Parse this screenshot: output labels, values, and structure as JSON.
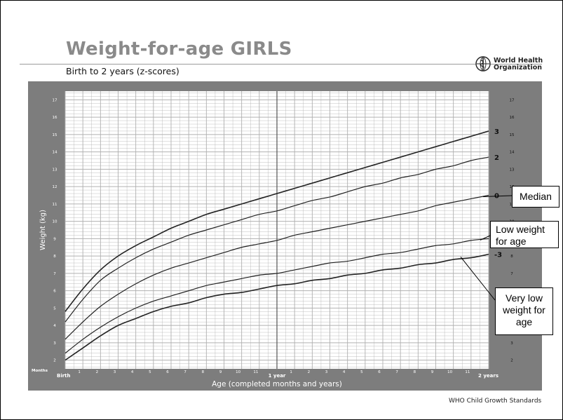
{
  "header": {
    "title": "Weight-for-age GIRLS",
    "subtitle": "Birth to 2 years (z-scores)",
    "organization_line1": "World Health",
    "organization_line2": "Organization",
    "logo_icon": "who-emblem-icon"
  },
  "footer": {
    "text": "WHO Child Growth Standards"
  },
  "callouts": {
    "median": "Median",
    "low_weight": [
      "Low weight",
      "for age"
    ],
    "very_low_weight": [
      "Very low",
      "weight for",
      "age"
    ]
  },
  "colors": {
    "plot_background": "#7d7d7d",
    "grid_area": "#ffffff",
    "grid_lines": "#b0b0b0",
    "curves": "#222222",
    "title": "#8a8a8a"
  },
  "chart_data": {
    "type": "line",
    "ylabel": "Weight (kg)",
    "xlabel": "Age (completed months and years)",
    "corner_label": "Months",
    "xlim": [
      0,
      24
    ],
    "ylim": [
      1.5,
      17.5
    ],
    "y_ticks": [
      2,
      3,
      4,
      5,
      6,
      7,
      8,
      9,
      10,
      11,
      12,
      13,
      14,
      15,
      16,
      17
    ],
    "x_ticks": [
      {
        "month": 0,
        "label": "Birth"
      },
      {
        "month": 1,
        "label": "1"
      },
      {
        "month": 2,
        "label": "2"
      },
      {
        "month": 3,
        "label": "3"
      },
      {
        "month": 4,
        "label": "4"
      },
      {
        "month": 5,
        "label": "5"
      },
      {
        "month": 6,
        "label": "6"
      },
      {
        "month": 7,
        "label": "7"
      },
      {
        "month": 8,
        "label": "8"
      },
      {
        "month": 9,
        "label": "9"
      },
      {
        "month": 10,
        "label": "10"
      },
      {
        "month": 11,
        "label": "11"
      },
      {
        "month": 12,
        "label": "1 year"
      },
      {
        "month": 13,
        "label": "1"
      },
      {
        "month": 14,
        "label": "2"
      },
      {
        "month": 15,
        "label": "3"
      },
      {
        "month": 16,
        "label": "4"
      },
      {
        "month": 17,
        "label": "5"
      },
      {
        "month": 18,
        "label": "6"
      },
      {
        "month": 19,
        "label": "7"
      },
      {
        "month": 20,
        "label": "8"
      },
      {
        "month": 21,
        "label": "9"
      },
      {
        "month": 22,
        "label": "10"
      },
      {
        "month": 23,
        "label": "11"
      },
      {
        "month": 24,
        "label": "2 years"
      }
    ],
    "x": [
      0,
      1,
      2,
      3,
      4,
      5,
      6,
      7,
      8,
      9,
      10,
      11,
      12,
      13,
      14,
      15,
      16,
      17,
      18,
      19,
      20,
      21,
      22,
      23,
      24
    ],
    "series": [
      {
        "name": "3",
        "values": [
          4.8,
          6.1,
          7.2,
          8.0,
          8.6,
          9.1,
          9.6,
          10.0,
          10.4,
          10.7,
          11.0,
          11.3,
          11.6,
          11.9,
          12.2,
          12.5,
          12.8,
          13.1,
          13.4,
          13.7,
          14.0,
          14.3,
          14.6,
          14.9,
          15.2
        ]
      },
      {
        "name": "2",
        "values": [
          4.2,
          5.5,
          6.6,
          7.3,
          7.9,
          8.4,
          8.8,
          9.2,
          9.5,
          9.8,
          10.1,
          10.4,
          10.6,
          10.9,
          11.2,
          11.4,
          11.7,
          12.0,
          12.2,
          12.5,
          12.7,
          13.0,
          13.2,
          13.5,
          13.7
        ]
      },
      {
        "name": "0",
        "values": [
          3.2,
          4.2,
          5.1,
          5.8,
          6.4,
          6.9,
          7.3,
          7.6,
          7.9,
          8.2,
          8.5,
          8.7,
          8.9,
          9.2,
          9.4,
          9.6,
          9.8,
          10.0,
          10.2,
          10.4,
          10.6,
          10.9,
          11.1,
          11.3,
          11.5
        ]
      },
      {
        "name": "-2",
        "values": [
          2.4,
          3.2,
          3.9,
          4.5,
          5.0,
          5.4,
          5.7,
          6.0,
          6.3,
          6.5,
          6.7,
          6.9,
          7.0,
          7.2,
          7.4,
          7.6,
          7.7,
          7.9,
          8.1,
          8.2,
          8.4,
          8.6,
          8.7,
          8.9,
          9.0
        ]
      },
      {
        "name": "-3",
        "values": [
          2.0,
          2.7,
          3.4,
          4.0,
          4.4,
          4.8,
          5.1,
          5.3,
          5.6,
          5.8,
          5.9,
          6.1,
          6.3,
          6.4,
          6.6,
          6.7,
          6.9,
          7.0,
          7.2,
          7.3,
          7.5,
          7.6,
          7.8,
          7.9,
          8.1
        ]
      }
    ],
    "curve_labels": [
      "3",
      "2",
      "0",
      "-3"
    ],
    "grid": true
  }
}
